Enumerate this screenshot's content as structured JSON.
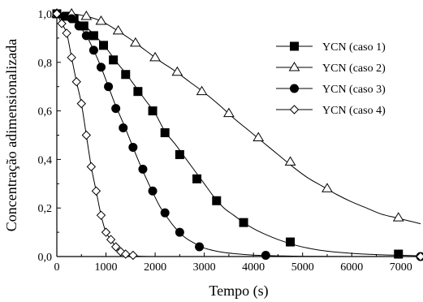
{
  "chart_data": {
    "type": "line",
    "xlabel": "Tempo (s)",
    "ylabel": "Concentração adimensionalizada",
    "xlim": [
      0,
      7400
    ],
    "ylim": [
      0,
      1.0
    ],
    "xticks": [
      0,
      1000,
      2000,
      3000,
      4000,
      5000,
      6000,
      7000
    ],
    "xtick_labels": [
      "0",
      "1000",
      "2000",
      "3000",
      "4000",
      "5000",
      "6000",
      "7000"
    ],
    "yticks": [
      0.0,
      0.2,
      0.4,
      0.6,
      0.8,
      1.0
    ],
    "ytick_labels": [
      "0,0",
      "0,2",
      "0,4",
      "0,6",
      "0,8",
      "1,0"
    ],
    "legend_position": "top-right",
    "series": [
      {
        "name": "YCN (caso 1)",
        "marker": "square-filled",
        "x": [
          0,
          200,
          350,
          550,
          750,
          950,
          1150,
          1400,
          1650,
          1950,
          2200,
          2500,
          2850,
          3250,
          3800,
          4750,
          6950
        ],
        "y": [
          1.0,
          0.99,
          0.98,
          0.95,
          0.91,
          0.87,
          0.81,
          0.75,
          0.68,
          0.6,
          0.51,
          0.42,
          0.32,
          0.23,
          0.14,
          0.06,
          0.01
        ],
        "curve_x": [
          0,
          200,
          400,
          600,
          800,
          1000,
          1200,
          1400,
          1600,
          1800,
          2000,
          2200,
          2400,
          2600,
          2800,
          3000,
          3200,
          3400,
          3600,
          3800,
          4000,
          4200,
          4500,
          4800,
          5100,
          5500,
          6000,
          6500,
          7000,
          7400
        ],
        "curve_y": [
          1.0,
          0.99,
          0.975,
          0.945,
          0.905,
          0.86,
          0.805,
          0.755,
          0.7,
          0.645,
          0.59,
          0.515,
          0.465,
          0.41,
          0.355,
          0.3,
          0.245,
          0.2,
          0.17,
          0.14,
          0.115,
          0.095,
          0.07,
          0.05,
          0.035,
          0.022,
          0.013,
          0.008,
          0.005,
          0.003
        ]
      },
      {
        "name": "YCN (caso 2)",
        "marker": "triangle-open",
        "x": [
          0,
          300,
          600,
          900,
          1250,
          1600,
          2000,
          2450,
          2950,
          3500,
          4100,
          4750,
          5500,
          6950
        ],
        "y": [
          1.0,
          1.0,
          0.99,
          0.97,
          0.93,
          0.88,
          0.82,
          0.76,
          0.68,
          0.59,
          0.49,
          0.39,
          0.28,
          0.16
        ],
        "curve_x": [
          0,
          300,
          600,
          900,
          1200,
          1500,
          1800,
          2100,
          2400,
          2700,
          3000,
          3300,
          3600,
          3900,
          4200,
          4500,
          4800,
          5100,
          5400,
          5700,
          6000,
          6300,
          6600,
          6900,
          7200,
          7400
        ],
        "curve_y": [
          1.0,
          1.0,
          0.99,
          0.97,
          0.935,
          0.895,
          0.85,
          0.805,
          0.765,
          0.72,
          0.675,
          0.625,
          0.57,
          0.52,
          0.47,
          0.42,
          0.37,
          0.325,
          0.29,
          0.255,
          0.225,
          0.2,
          0.175,
          0.16,
          0.145,
          0.135
        ]
      },
      {
        "name": "YCN (caso 3)",
        "marker": "circle-filled",
        "x": [
          0,
          150,
          300,
          450,
          600,
          750,
          900,
          1050,
          1200,
          1350,
          1550,
          1750,
          1950,
          2200,
          2500,
          2900,
          4250,
          7400
        ],
        "y": [
          1.0,
          0.99,
          0.98,
          0.95,
          0.91,
          0.85,
          0.78,
          0.7,
          0.61,
          0.53,
          0.45,
          0.36,
          0.27,
          0.18,
          0.1,
          0.04,
          0.005,
          0.0
        ],
        "curve_x": [
          0,
          150,
          300,
          450,
          600,
          750,
          900,
          1050,
          1200,
          1350,
          1500,
          1650,
          1800,
          1950,
          2100,
          2250,
          2400,
          2600,
          2800,
          3000,
          3300,
          3600,
          4000,
          4500,
          5000,
          6000,
          7400
        ],
        "curve_y": [
          1.0,
          0.99,
          0.98,
          0.95,
          0.91,
          0.85,
          0.78,
          0.7,
          0.62,
          0.55,
          0.475,
          0.4,
          0.33,
          0.265,
          0.205,
          0.16,
          0.12,
          0.08,
          0.055,
          0.035,
          0.02,
          0.012,
          0.006,
          0.003,
          0.001,
          0.0,
          0.0
        ]
      },
      {
        "name": "YCN (caso 4)",
        "marker": "diamond-open",
        "x": [
          0,
          100,
          200,
          300,
          400,
          500,
          600,
          700,
          800,
          900,
          1000,
          1100,
          1200,
          1300,
          1400,
          1550,
          7400
        ],
        "y": [
          1.0,
          0.96,
          0.92,
          0.82,
          0.72,
          0.63,
          0.5,
          0.37,
          0.27,
          0.17,
          0.1,
          0.07,
          0.04,
          0.02,
          0.01,
          0.005,
          0.0
        ],
        "curve_x": [
          0,
          100,
          200,
          300,
          400,
          500,
          600,
          700,
          800,
          900,
          1000,
          1100,
          1200,
          1300,
          1400,
          1500,
          1600,
          1700,
          2000,
          3000,
          5000,
          7400
        ],
        "curve_y": [
          1.0,
          0.96,
          0.92,
          0.82,
          0.72,
          0.63,
          0.5,
          0.37,
          0.27,
          0.17,
          0.1,
          0.07,
          0.04,
          0.02,
          0.01,
          0.006,
          0.003,
          0.001,
          0.0,
          0.0,
          0.0,
          0.0
        ]
      }
    ]
  }
}
